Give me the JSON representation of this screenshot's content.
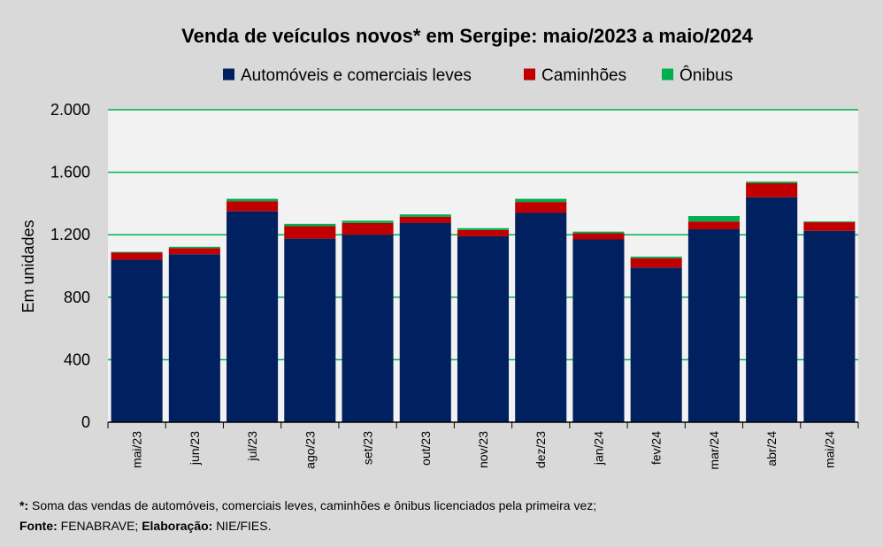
{
  "chart_data": {
    "type": "bar",
    "stacked": true,
    "title": "Venda de veículos novos* em Sergipe: maio/2023 a maio/2024",
    "xlabel": "",
    "ylabel": "Em unidades",
    "ylim": [
      0,
      2000
    ],
    "yticks": [
      0,
      400,
      800,
      1200,
      1600,
      2000
    ],
    "ytick_labels": [
      "0",
      "400",
      "800",
      "1.200",
      "1.600",
      "2.000"
    ],
    "grid": true,
    "legend_position": "top",
    "categories": [
      "mai/23",
      "jun/23",
      "jul/23",
      "ago/23",
      "set/23",
      "out/23",
      "nov/23",
      "dez/23",
      "jan/24",
      "fev/24",
      "mar/24",
      "abr/24",
      "mai/24"
    ],
    "series": [
      {
        "name": "Automóveis e comerciais leves",
        "color": "#002060",
        "values": [
          1040,
          1075,
          1350,
          1175,
          1200,
          1275,
          1190,
          1340,
          1170,
          990,
          1235,
          1440,
          1225
        ]
      },
      {
        "name": "Caminhões",
        "color": "#c00000",
        "values": [
          45,
          40,
          65,
          80,
          75,
          40,
          40,
          70,
          40,
          60,
          50,
          90,
          55
        ]
      },
      {
        "name": "Ônibus",
        "color": "#00b050",
        "values": [
          5,
          8,
          15,
          15,
          15,
          15,
          12,
          20,
          10,
          10,
          35,
          10,
          5
        ]
      }
    ]
  },
  "footnotes": {
    "note_mark": "*:",
    "note_text": " Soma das vendas de automóveis, comerciais leves, caminhões e ônibus licenciados pela primeira vez;",
    "source_label": "Fonte:",
    "source_text": " FENABRAVE; ",
    "elab_label": "Elaboração:",
    "elab_text": " NIE/FIES."
  }
}
